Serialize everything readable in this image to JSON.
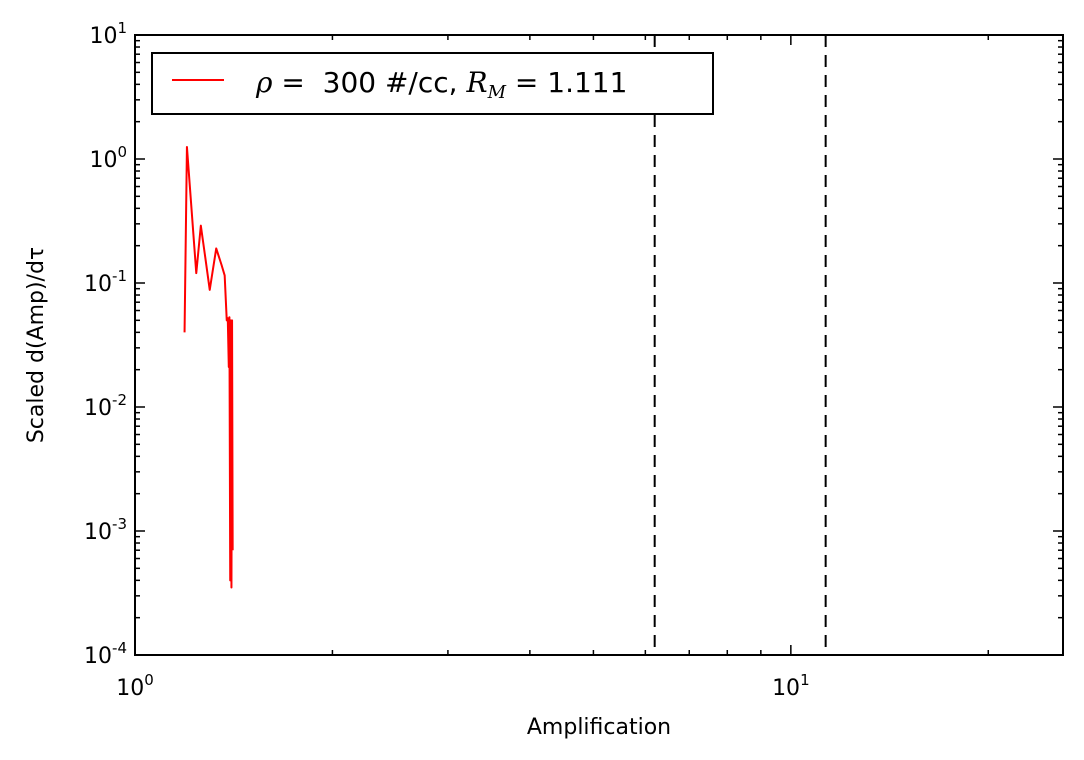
{
  "chart_data": {
    "type": "line",
    "title": "",
    "xlabel": "Amplification",
    "ylabel": "Scaled d(Amp)/dτ",
    "xscale": "log",
    "yscale": "log",
    "xlim": [
      1,
      26
    ],
    "ylim": [
      0.0001,
      10
    ],
    "grid": false,
    "legend_position": "top-left",
    "x_tick_labels": [
      {
        "value": 1,
        "base": "10",
        "exp": "0"
      },
      {
        "value": 10,
        "base": "10",
        "exp": "1"
      }
    ],
    "y_tick_labels": [
      {
        "value": 10,
        "base": "10",
        "exp": "1"
      },
      {
        "value": 1,
        "base": "10",
        "exp": "0"
      },
      {
        "value": 0.1,
        "base": "10",
        "exp": "-1"
      },
      {
        "value": 0.01,
        "base": "10",
        "exp": "-2"
      },
      {
        "value": 0.001,
        "base": "10",
        "exp": "-3"
      },
      {
        "value": 0.0001,
        "base": "10",
        "exp": "-4"
      }
    ],
    "vertical_lines": [
      {
        "x": 6.2,
        "style": "dashed",
        "color": "#000000"
      },
      {
        "x": 11.3,
        "style": "dashed",
        "color": "#000000"
      }
    ],
    "legend": {
      "prefix": "ρ",
      "middle": " =  300 #/cc, ",
      "var": "R",
      "sub": "M",
      "suffix": " = 1.111"
    },
    "series": [
      {
        "color": "#ff0000",
        "x": [
          1.19,
          1.2,
          1.24,
          1.26,
          1.28,
          1.3,
          1.33,
          1.355,
          1.37,
          1.38,
          1.385,
          1.39,
          1.393,
          1.397,
          1.4,
          1.403,
          1.406,
          1.409
        ],
        "y": [
          0.04,
          1.25,
          0.12,
          0.29,
          0.16,
          0.088,
          0.19,
          0.14,
          0.115,
          0.05,
          0.052,
          0.021,
          0.053,
          0.0004,
          0.05,
          0.00035,
          0.05,
          0.0007
        ]
      }
    ]
  },
  "colors": {
    "series": "#ff0000",
    "axes": "#000000",
    "background": "#ffffff"
  }
}
